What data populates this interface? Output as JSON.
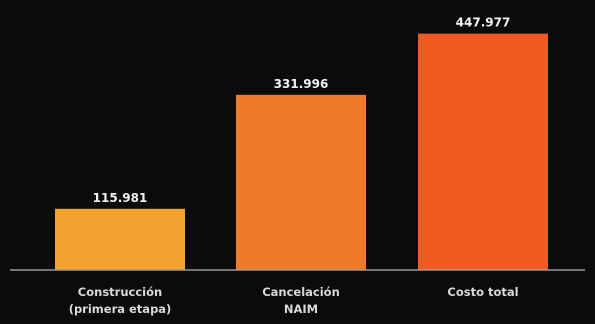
{
  "chart_data": {
    "type": "bar",
    "categories": [
      [
        "Construcción",
        "(primera etapa)"
      ],
      [
        "Cancelación",
        "NAIM"
      ],
      [
        "Costo total"
      ]
    ],
    "value_labels": [
      "115.981",
      "331.996",
      "447.977"
    ],
    "values": [
      115981,
      331996,
      447977
    ],
    "ylim": [
      0,
      470000
    ],
    "title": "",
    "xlabel": "",
    "ylabel": "",
    "grid": false,
    "colors": [
      "#f5a12f",
      "#f07a2a",
      "#f25a22"
    ],
    "baseline_color": "#9a9a9a",
    "background": "#0b0b0b"
  }
}
